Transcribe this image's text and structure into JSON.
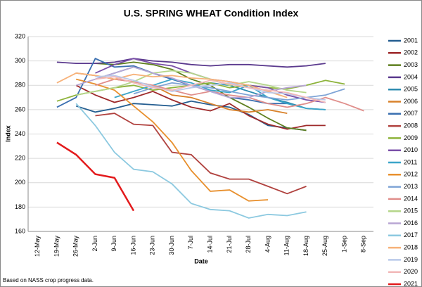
{
  "chart_data": {
    "type": "line",
    "title": "U.S. SPRING WHEAT Condition Index",
    "x_label": "Date",
    "y_label": "Index",
    "note": "Based on NASS crop progress data.",
    "categories": [
      "12-May",
      "19-May",
      "26-May",
      "2-Jun",
      "9-Jun",
      "16-Jun",
      "23-Jun",
      "30-Jun",
      "7-Jul",
      "14-Jul",
      "21-Jul",
      "28-Jul",
      "4-Aug",
      "11-Aug",
      "18-Aug",
      "25-Aug",
      "1-Sep",
      "8-Sep"
    ],
    "ylim": [
      160,
      320
    ],
    "yticks": [
      160,
      180,
      200,
      220,
      240,
      260,
      280,
      300,
      320
    ],
    "grid": true,
    "legend": "right",
    "series": [
      {
        "name": "2001",
        "color": "#255E91",
        "values": [
          null,
          null,
          263,
          258,
          261,
          265,
          264,
          263,
          267,
          264,
          262,
          256,
          247,
          245,
          243,
          null,
          null,
          null
        ]
      },
      {
        "name": "2002",
        "color": "#9E2A2B",
        "values": [
          null,
          null,
          280,
          272,
          266,
          270,
          275,
          268,
          262,
          259,
          265,
          255,
          248,
          244,
          247,
          247,
          null,
          null
        ]
      },
      {
        "name": "2003",
        "color": "#5E7F1F",
        "values": [
          null,
          null,
          null,
          298,
          297,
          299,
          297,
          293,
          285,
          280,
          270,
          262,
          253,
          245,
          243,
          null,
          null,
          null
        ]
      },
      {
        "name": "2004",
        "color": "#5B3A8E",
        "values": [
          null,
          299,
          298,
          298,
          299,
          302,
          300,
          299,
          297,
          296,
          297,
          297,
          296,
          295,
          296,
          298,
          null,
          null
        ]
      },
      {
        "name": "2005",
        "color": "#2E8BB0",
        "values": [
          null,
          null,
          null,
          285,
          290,
          295,
          290,
          285,
          280,
          282,
          280,
          275,
          270,
          266,
          261,
          260,
          null,
          null
        ]
      },
      {
        "name": "2006",
        "color": "#D9822B",
        "values": [
          null,
          null,
          290,
          288,
          285,
          283,
          280,
          272,
          270,
          265,
          260,
          258,
          260,
          257,
          null,
          null,
          null,
          null
        ]
      },
      {
        "name": "2007",
        "color": "#3A6FB0",
        "values": [
          null,
          262,
          270,
          302,
          295,
          296,
          290,
          285,
          280,
          275,
          270,
          268,
          265,
          265,
          null,
          null,
          null,
          null
        ]
      },
      {
        "name": "2008",
        "color": "#B0413E",
        "values": [
          null,
          null,
          null,
          255,
          257,
          248,
          247,
          225,
          223,
          208,
          203,
          203,
          197,
          191,
          197,
          null,
          null,
          null
        ]
      },
      {
        "name": "2009",
        "color": "#8DB33A",
        "values": [
          null,
          267,
          272,
          275,
          278,
          280,
          276,
          278,
          280,
          282,
          278,
          280,
          278,
          277,
          280,
          284,
          281,
          null
        ]
      },
      {
        "name": "2010",
        "color": "#7A4FA8",
        "values": [
          null,
          null,
          null,
          290,
          297,
          302,
          298,
          296,
          290,
          285,
          283,
          280,
          278,
          272,
          268,
          266,
          null,
          null
        ]
      },
      {
        "name": "2011",
        "color": "#3BA5C9",
        "values": [
          null,
          null,
          null,
          null,
          270,
          275,
          280,
          285,
          282,
          276,
          274,
          280,
          270,
          265,
          261,
          260,
          null,
          null
        ]
      },
      {
        "name": "2012",
        "color": "#E8902E",
        "values": [
          null,
          null,
          285,
          281,
          276,
          263,
          250,
          233,
          210,
          193,
          194,
          185,
          186,
          null,
          null,
          null,
          null,
          null
        ]
      },
      {
        "name": "2013",
        "color": "#7FA4D6",
        "values": [
          null,
          null,
          null,
          null,
          null,
          273,
          278,
          282,
          280,
          278,
          275,
          272,
          270,
          268,
          270,
          272,
          277,
          null
        ]
      },
      {
        "name": "2014",
        "color": "#E08E8B",
        "values": [
          null,
          null,
          null,
          280,
          285,
          283,
          280,
          276,
          272,
          275,
          272,
          270,
          265,
          262,
          265,
          270,
          265,
          259
        ]
      },
      {
        "name": "2015",
        "color": "#B5D68A",
        "values": [
          null,
          null,
          272,
          275,
          278,
          283,
          290,
          292,
          290,
          285,
          280,
          283,
          280,
          276,
          274,
          null,
          null,
          null
        ]
      },
      {
        "name": "2016",
        "color": "#B8A6D4",
        "values": [
          null,
          null,
          280,
          285,
          290,
          295,
          290,
          286,
          280,
          275,
          270,
          270,
          275,
          278,
          280,
          null,
          null,
          null
        ]
      },
      {
        "name": "2017",
        "color": "#8CC9E0",
        "values": [
          null,
          null,
          265,
          247,
          225,
          211,
          209,
          199,
          183,
          178,
          177,
          171,
          174,
          173,
          176,
          null,
          null,
          null
        ]
      },
      {
        "name": "2018",
        "color": "#F7B27A",
        "values": [
          null,
          282,
          290,
          288,
          285,
          289,
          287,
          288,
          286,
          285,
          283,
          280,
          275,
          270,
          null,
          null,
          null,
          null
        ]
      },
      {
        "name": "2019",
        "color": "#B9C9EA",
        "values": [
          null,
          null,
          null,
          287,
          288,
          284,
          279,
          275,
          278,
          280,
          282,
          278,
          274,
          273,
          270,
          268,
          null,
          null
        ]
      },
      {
        "name": "2020",
        "color": "#F2B8B8",
        "values": [
          null,
          null,
          null,
          285,
          287,
          282,
          278,
          276,
          280,
          284,
          281,
          278,
          276,
          274,
          270,
          266,
          null,
          null
        ]
      },
      {
        "name": "2021",
        "color": "#E31A1C",
        "values": [
          null,
          233,
          223,
          207,
          204,
          177,
          null,
          null,
          null,
          null,
          null,
          null,
          null,
          null,
          null,
          null,
          null,
          null
        ]
      }
    ]
  }
}
